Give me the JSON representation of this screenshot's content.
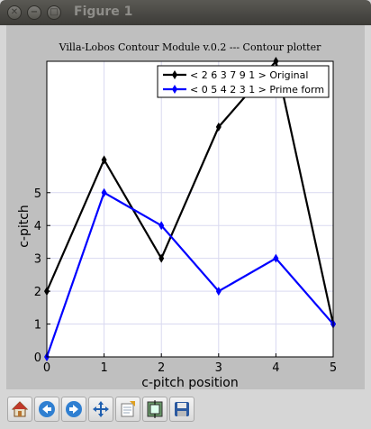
{
  "window": {
    "title": "Figure 1"
  },
  "toolbar": {
    "buttons": [
      "home-icon",
      "back-icon",
      "forward-icon",
      "pan-icon",
      "zoom-icon",
      "subplots-icon",
      "save-icon"
    ]
  },
  "colors": {
    "original": "#000000",
    "prime": "#0000ff",
    "canvas_bg": "#bfbfbf",
    "grid": "#d9d9f0"
  },
  "chart_data": {
    "type": "line",
    "title": "Villa-Lobos Contour Module v.0.2 --- Contour plotter",
    "xlabel": "c-pitch position",
    "ylabel": "c-pitch",
    "xlim": [
      0,
      5
    ],
    "ylim": [
      0,
      9
    ],
    "x": [
      0,
      1,
      2,
      3,
      4,
      5
    ],
    "xticks": [
      "0",
      "1",
      "2",
      "3",
      "4",
      "5"
    ],
    "yticks": [
      "0",
      "1",
      "2",
      "3",
      "4",
      "5"
    ],
    "grid": true,
    "legend_position": "top-right",
    "series": [
      {
        "name": "< 2 6 3 7 9 1 > Original",
        "values": [
          2,
          6,
          3,
          7,
          9,
          1
        ],
        "color": "#000000"
      },
      {
        "name": "< 0 5 4 2 3 1 > Prime form",
        "values": [
          0,
          5,
          4,
          2,
          3,
          1
        ],
        "color": "#0000ff"
      }
    ]
  }
}
